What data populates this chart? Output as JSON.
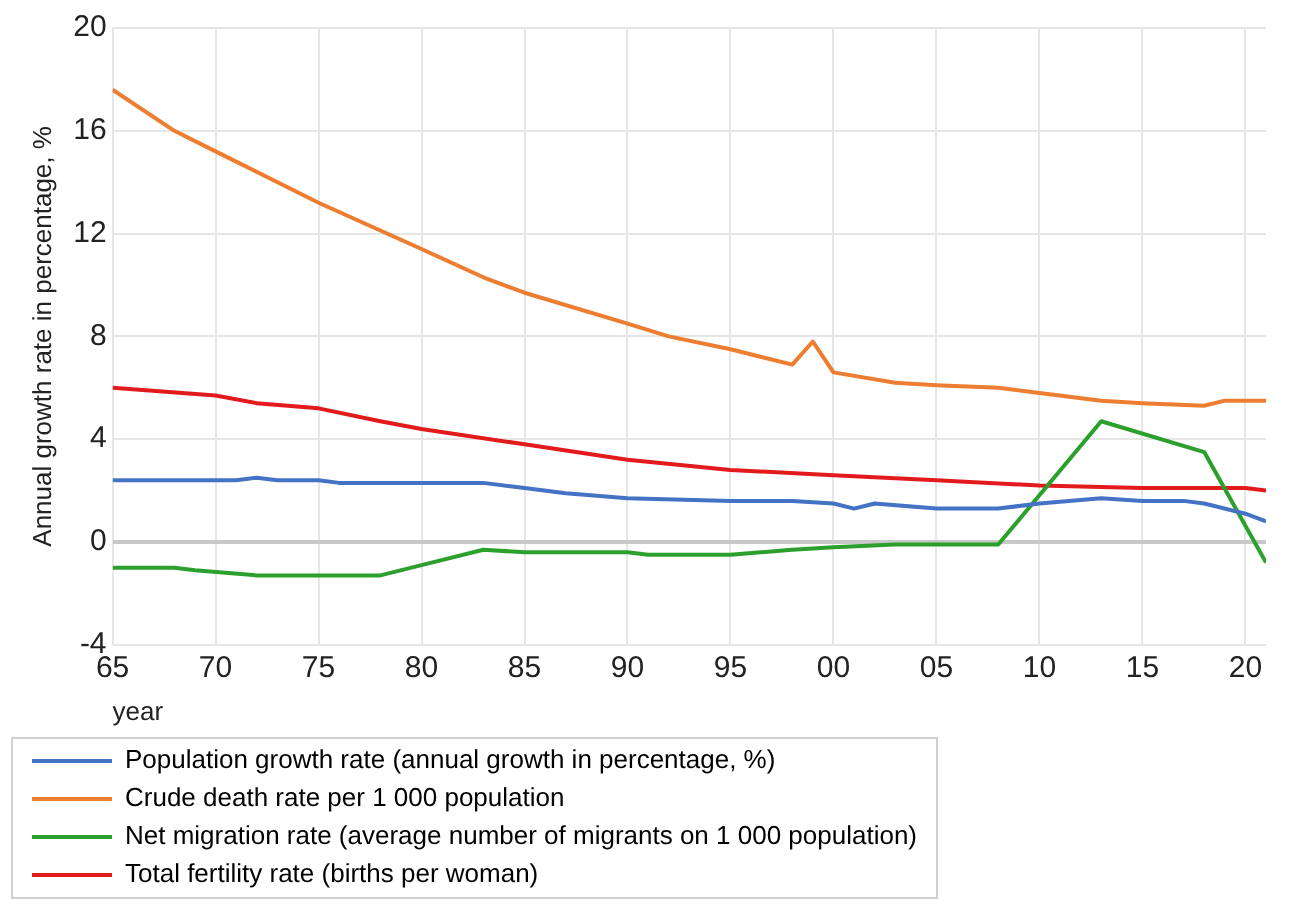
{
  "chart_data": {
    "type": "line",
    "xlabel": "year",
    "ylabel": "Annual growth rate in percentage, %",
    "xlim": [
      1965,
      2021
    ],
    "xticks": [
      {
        "value": 1965,
        "label": "65"
      },
      {
        "value": 1970,
        "label": "70"
      },
      {
        "value": 1975,
        "label": "75"
      },
      {
        "value": 1980,
        "label": "80"
      },
      {
        "value": 1985,
        "label": "85"
      },
      {
        "value": 1990,
        "label": "90"
      },
      {
        "value": 1995,
        "label": "95"
      },
      {
        "value": 2000,
        "label": "00"
      },
      {
        "value": 2005,
        "label": "05"
      },
      {
        "value": 2010,
        "label": "10"
      },
      {
        "value": 2015,
        "label": "15"
      },
      {
        "value": 2020,
        "label": "20"
      }
    ],
    "ylim": [
      -4,
      20
    ],
    "yticks": [
      -4,
      0,
      4,
      8,
      12,
      16,
      20
    ],
    "grid": true,
    "legend": "bottom",
    "marker": "none",
    "line_style": "solid",
    "series": [
      {
        "name": "Population growth rate (annual growth in percentage, %)",
        "color": "#4472c4",
        "x": [
          1965,
          1971,
          1972,
          1973,
          1975,
          1976,
          1983,
          1985,
          1987,
          1990,
          1995,
          1998,
          2000,
          2001,
          2002,
          2005,
          2008,
          2010,
          2013,
          2015,
          2017,
          2018,
          2020,
          2021
        ],
        "values": [
          2.4,
          2.4,
          2.5,
          2.4,
          2.4,
          2.3,
          2.3,
          2.1,
          1.9,
          1.7,
          1.6,
          1.6,
          1.5,
          1.3,
          1.5,
          1.3,
          1.3,
          1.5,
          1.7,
          1.6,
          1.6,
          1.5,
          1.1,
          0.8
        ]
      },
      {
        "name": "Crude death rate per 1 000 population",
        "color": "#ed7d31",
        "x": [
          1965,
          1968,
          1970,
          1975,
          1980,
          1983,
          1985,
          1990,
          1992,
          1995,
          1998,
          1999,
          2000,
          2003,
          2005,
          2008,
          2010,
          2013,
          2015,
          2018,
          2019,
          2021
        ],
        "values": [
          17.6,
          16.0,
          15.2,
          13.2,
          11.4,
          10.3,
          9.7,
          8.5,
          8.0,
          7.5,
          6.9,
          7.8,
          6.6,
          6.2,
          6.1,
          6.0,
          5.8,
          5.5,
          5.4,
          5.3,
          5.5,
          5.5
        ]
      },
      {
        "name": "Net migration rate (average number of migrants on 1 000 population)",
        "color": "#2ca02c",
        "x": [
          1965,
          1968,
          1969,
          1972,
          1978,
          1980,
          1983,
          1985,
          1990,
          1991,
          1995,
          1998,
          2000,
          2003,
          2008,
          2013,
          2018,
          2021
        ],
        "values": [
          -1.0,
          -1.0,
          -1.1,
          -1.3,
          -1.3,
          -0.9,
          -0.3,
          -0.4,
          -0.4,
          -0.5,
          -0.5,
          -0.3,
          -0.2,
          -0.1,
          -0.1,
          4.7,
          3.5,
          -0.8
        ]
      },
      {
        "name": "Total fertility rate (births per woman)",
        "color": "#e31a1c",
        "x": [
          1965,
          1970,
          1972,
          1975,
          1978,
          1980,
          1985,
          1990,
          1995,
          2000,
          2005,
          2010,
          2015,
          2020,
          2021
        ],
        "values": [
          6.0,
          5.7,
          5.4,
          5.2,
          4.7,
          4.4,
          3.8,
          3.2,
          2.8,
          2.6,
          2.4,
          2.2,
          2.1,
          2.1,
          2.0
        ]
      }
    ]
  }
}
